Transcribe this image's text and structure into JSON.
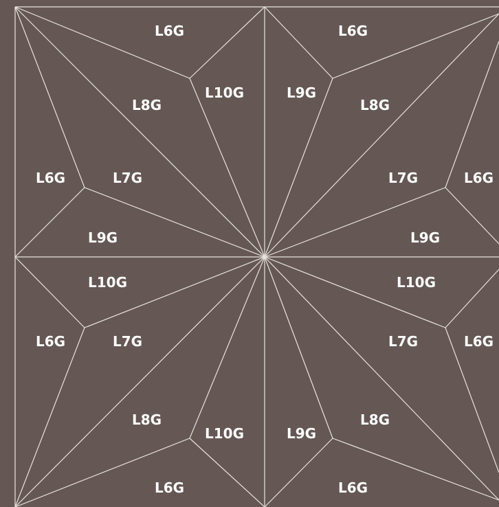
{
  "colors": {
    "background": "#655854",
    "line": "#e9e3df",
    "label": "#ffffff"
  },
  "regions": [
    {
      "id": "tl-top",
      "label": "L6G"
    },
    {
      "id": "tr-top",
      "label": "L6G"
    },
    {
      "id": "tl-l10",
      "label": "L10G"
    },
    {
      "id": "tr-l9",
      "label": "L9G"
    },
    {
      "id": "tl-l8",
      "label": "L8G"
    },
    {
      "id": "tr-l8",
      "label": "L8G"
    },
    {
      "id": "tl-l6",
      "label": "L6G"
    },
    {
      "id": "tl-l7",
      "label": "L7G"
    },
    {
      "id": "tr-l7",
      "label": "L7G"
    },
    {
      "id": "tr-l6",
      "label": "L6G"
    },
    {
      "id": "tl-l9",
      "label": "L9G"
    },
    {
      "id": "tr-l9b",
      "label": "L9G"
    },
    {
      "id": "bl-l10",
      "label": "L10G"
    },
    {
      "id": "br-l10",
      "label": "L10G"
    },
    {
      "id": "bl-l6",
      "label": "L6G"
    },
    {
      "id": "bl-l7",
      "label": "L7G"
    },
    {
      "id": "br-l7",
      "label": "L7G"
    },
    {
      "id": "br-l6",
      "label": "L6G"
    },
    {
      "id": "bl-l8",
      "label": "L8G"
    },
    {
      "id": "bl-l10b",
      "label": "L10G"
    },
    {
      "id": "br-l9",
      "label": "L9G"
    },
    {
      "id": "br-l8",
      "label": "L8G"
    },
    {
      "id": "bl-bottom",
      "label": "L6G"
    },
    {
      "id": "br-bottom",
      "label": "L6G"
    }
  ]
}
